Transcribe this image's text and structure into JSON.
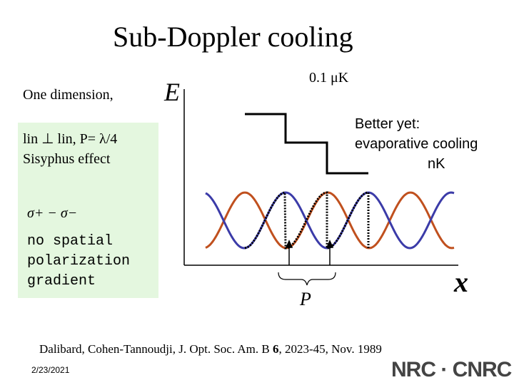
{
  "title": "Sub-Doppler cooling",
  "temperature_label": "0.1 μK",
  "left_panel": {
    "intro": "One dimension,",
    "config": "lin ⊥ lin, P= λ/4",
    "effect": "Sisyphus effect",
    "sigma": "σ+ − σ−",
    "note_lines": [
      "no spatial",
      "polarization",
      "gradient"
    ]
  },
  "energy_axis": "E",
  "position_axis": "x",
  "period_label": "P",
  "better": {
    "lines": [
      "Better yet:",
      "evaporative cooling",
      "nK"
    ]
  },
  "citation": {
    "before": "Dalibard, Cohen-Tannoudji, J. Opt. Soc. Am. B ",
    "volume": "6",
    "after": ", 2023-45, Nov. 1989"
  },
  "footer": {
    "date": "2/23/2021",
    "logo": "NRC · CNRC"
  }
}
